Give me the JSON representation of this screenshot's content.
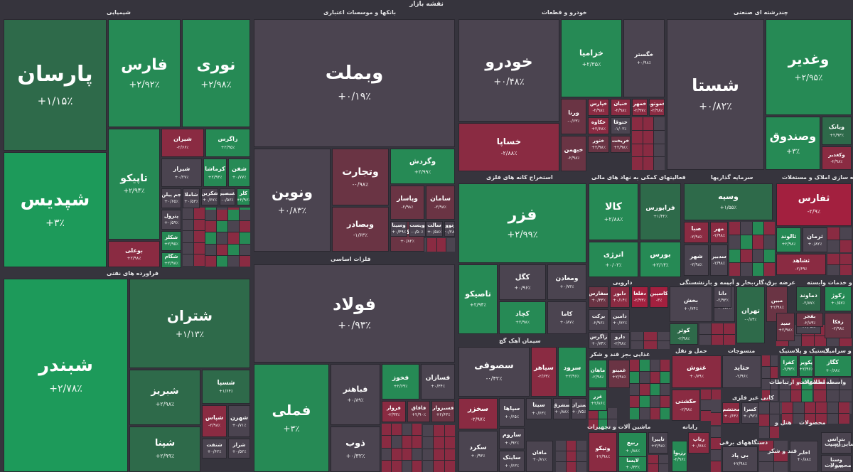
{
  "page_title": "نقشه بازار",
  "colors": {
    "g3": "#1d9a5a",
    "g2": "#268a55",
    "g1": "#2e6a4a",
    "n": "#4b4450",
    "r1": "#6a3444",
    "r2": "#8a2b42",
    "r3": "#a3203f"
  },
  "sectors": [
    {
      "label": "شیمیایی"
    },
    {
      "label": "بانکها و موسسات اعتباری"
    },
    {
      "label": "خودرو و قطعات"
    },
    {
      "label": "چندرشته ای صنعتی"
    },
    {
      "label": "فراورده های نفتی"
    },
    {
      "label": "فلزات اساسی"
    },
    {
      "label": "استخراج کانه های فلزی"
    },
    {
      "label": "فعالیتهای کمکی به نهاد های مالی"
    },
    {
      "label": "سرمایه گذاریها"
    },
    {
      "label": "انبوه سازی املاک و مستغلات"
    },
    {
      "label": "سیمان آهک گچ"
    },
    {
      "label": "دارویی"
    },
    {
      "label": "بیمه و بازنشستگی"
    },
    {
      "label": "زراعت و خدمات وابسته"
    },
    {
      "label": "عرضه برق،گاز،بخار و آب"
    },
    {
      "label": "غذایی بجز قند و شکر"
    },
    {
      "label": "حمل و نقل"
    },
    {
      "label": "منسوجات"
    },
    {
      "label": "لاستیک و پلاستیک"
    },
    {
      "label": "کاشی و سرامیک"
    },
    {
      "label": "ماشین آلات و تجهیزات"
    },
    {
      "label": "رایانه"
    },
    {
      "label": "اطلاعات و ارتباطات"
    },
    {
      "label": "محصولات"
    },
    {
      "label": "واسطه"
    },
    {
      "label": "کانی غیر فلزی"
    },
    {
      "label": "دستگاههای برقی"
    },
    {
      "label": "قند و شکر"
    },
    {
      "label": "ساير اسيت"
    },
    {
      "label": "محصولات"
    },
    {
      "label": "هتل و"
    },
    {
      "label": "محصولات"
    }
  ],
  "tiles": [
    {
      "name": "پارسان",
      "pct": "+۱/۱۵٪"
    },
    {
      "name": "فارس",
      "pct": "+۲/۹۲٪"
    },
    {
      "name": "نوری",
      "pct": "+۲/۹۸٪"
    },
    {
      "name": "شپدیس",
      "pct": "+۳٪"
    },
    {
      "name": "تاپیکو",
      "pct": "+۲/۹۴٪"
    },
    {
      "name": "شیران",
      "pct": "-۲/۶۶٪"
    },
    {
      "name": "زاگرس",
      "pct": "+۲/۹۵٪"
    },
    {
      "name": "شیراز",
      "pct": "+۰/۲۷٪"
    },
    {
      "name": "کرماشا",
      "pct": "+۲/۹۳٪"
    },
    {
      "name": "شفن",
      "pct": "+۰/۷۷٪"
    },
    {
      "name": "جم پیلن",
      "pct": "+۰/۶۵٪"
    },
    {
      "name": "شاملا",
      "pct": "+۰/۵۳٪"
    },
    {
      "name": "شکربن",
      "pct": "+۰/۶۷٪"
    },
    {
      "name": "شبصیر",
      "pct": "-۰/۵۶٪"
    },
    {
      "name": "کلر",
      "pct": "+۲/۹۶٪"
    },
    {
      "name": "پترول",
      "pct": "+۰/۵۹٪"
    },
    {
      "name": "شکلر",
      "pct": "+۲/۹۵٪"
    },
    {
      "name": "بوعلی",
      "pct": "+۲/۹۸٪"
    },
    {
      "name": "شگام",
      "pct": "+۲/۹۸٪"
    },
    {
      "name": "وبملت",
      "pct": "+۰/۱۹٪"
    },
    {
      "name": "ونوین",
      "pct": "+۰/۸۳٪"
    },
    {
      "name": "وتجارت",
      "pct": "-۰/۹۸٪"
    },
    {
      "name": "وگردش",
      "pct": "+۲/۹۹٪"
    },
    {
      "name": "وبصادر",
      "pct": "-۱/۶۳٪"
    },
    {
      "name": "وپاسار",
      "pct": "-۲/۹۸٪"
    },
    {
      "name": "وکار",
      "pct": "+۰/۸۲٪"
    },
    {
      "name": "سامان",
      "pct": "-۲/۹۸٪"
    },
    {
      "name": "وسینا",
      "pct": "+۰/۴۹٪"
    },
    {
      "name": "ویست",
      "pct": "-۰/۵۰٪"
    },
    {
      "name": "سالت",
      "pct": "+۰/۵۸٪"
    },
    {
      "name": "ونوور",
      "pct": "+۰/۲۸٪"
    },
    {
      "name": "خودرو",
      "pct": "+۰/۴۸٪"
    },
    {
      "name": "خزامیا",
      "pct": "+۲/۳۵٪"
    },
    {
      "name": "خگستر",
      "pct": "+۰/۹۸٪"
    },
    {
      "name": "خساپا",
      "pct": "-۲/۸۸٪"
    },
    {
      "name": "ورنا",
      "pct": "-۰/۶۳٪"
    },
    {
      "name": "خپارس",
      "pct": "-۲/۹۸٪"
    },
    {
      "name": "خنیان",
      "pct": "-۲/۹۸٪"
    },
    {
      "name": "خمهر",
      "pct": "-۲/۹۷٪"
    },
    {
      "name": "خموتور",
      "pct": "-۲/۹۸٪"
    },
    {
      "name": "خکاوه",
      "pct": "+۲/۶۸٪"
    },
    {
      "name": "ختوقا",
      "pct": "-۱/۰۲٪"
    },
    {
      "name": "خبهمن",
      "pct": "-۲/۹۸٪"
    },
    {
      "name": "ختور",
      "pct": "+۲/۹۸٪"
    },
    {
      "name": "خریخت",
      "pct": "+۲/۹۸٪"
    },
    {
      "name": "شستا",
      "pct": "+۰/۸۲٪"
    },
    {
      "name": "وغدیر",
      "pct": "+۲/۹۵٪"
    },
    {
      "name": "وصندوق",
      "pct": "+۳٪"
    },
    {
      "name": "وبانک",
      "pct": "+۲/۹۳٪"
    },
    {
      "name": "وکغدیر",
      "pct": "-۲/۹۸٪"
    },
    {
      "name": "شبندر",
      "pct": "+۲/۷۸٪"
    },
    {
      "name": "شتران",
      "pct": "+۱/۱۳٪"
    },
    {
      "name": "شبریز",
      "pct": "+۲/۹۸٪"
    },
    {
      "name": "شسپا",
      "pct": "+۱/۶۴٪"
    },
    {
      "name": "شپنا",
      "pct": "+۲/۹۹٪"
    },
    {
      "name": "شپاس",
      "pct": "-۲/۹۸٪"
    },
    {
      "name": "شهرن",
      "pct": "+۰/۷۱٪"
    },
    {
      "name": "شنفت",
      "pct": "+۰/۶۲٪"
    },
    {
      "name": "شراز",
      "pct": "+۰/۵۲٪"
    },
    {
      "name": "فولاد",
      "pct": "+۰/۹۳٪"
    },
    {
      "name": "فملی",
      "pct": "+۳٪"
    },
    {
      "name": "فباهنر",
      "pct": "+۰/۸۹٪"
    },
    {
      "name": "فخوز",
      "pct": "+۲/۶۹٪"
    },
    {
      "name": "فسازان",
      "pct": "+۰/۳۴٪"
    },
    {
      "name": "ذوب",
      "pct": "+۰/۳۲٪"
    },
    {
      "name": "فروار",
      "pct": "-۲/۹۳٪"
    },
    {
      "name": "فاقاق",
      "pct": "+۲/۹۰٪"
    },
    {
      "name": "فسبزوار",
      "pct": "+۲/۶۳٪"
    },
    {
      "name": "فزر",
      "pct": "+۲/۹۹٪"
    },
    {
      "name": "تاصیکو",
      "pct": "+۲/۹۴٪"
    },
    {
      "name": "کگل",
      "pct": "+۰/۹۶٪"
    },
    {
      "name": "ومعادن",
      "pct": "+۰/۷۳٪"
    },
    {
      "name": "کچاد",
      "pct": "+۲/۹۸٪"
    },
    {
      "name": "کاما",
      "pct": "+۰/۸۷٪"
    },
    {
      "name": "کالا",
      "pct": "+۲/۸۸٪"
    },
    {
      "name": "فرابورس",
      "pct": "+۱/۴۲٪"
    },
    {
      "name": "انرژی",
      "pct": "+۰/۰۲٪"
    },
    {
      "name": "بورس",
      "pct": "+۲/۱۴٪"
    },
    {
      "name": "وسپه",
      "pct": "+۱/۵۵٪"
    },
    {
      "name": "وخارزم",
      "pct": "-۲/۹۳٪"
    },
    {
      "name": "ثفارس",
      "pct": "-۲/۹٪"
    },
    {
      "name": "ثالوند",
      "pct": "+۲/۹۸٪"
    },
    {
      "name": "ثرمان",
      "pct": "+۰/۸۲٪"
    },
    {
      "name": "ثشاهد",
      "pct": "-۲/۶۹٪"
    },
    {
      "name": "صبا",
      "pct": "-۲/۹۸٪"
    },
    {
      "name": "مهر",
      "pct": "-۲/۹۸٪"
    },
    {
      "name": "شهر",
      "pct": "-۲/۹۸٪"
    },
    {
      "name": "سدبیر",
      "pct": "-۲/۹۸٪"
    },
    {
      "name": "سصوفی",
      "pct": "-۰/۴۲٪"
    },
    {
      "name": "سیاهر",
      "pct": "-۲/۶۳٪"
    },
    {
      "name": "سرود",
      "pct": "+۲/۹۶٪"
    },
    {
      "name": "سخزر",
      "pct": "-۲/۹۷٪"
    },
    {
      "name": "سپاها",
      "pct": "+۰/۶۵٪"
    },
    {
      "name": "سیتا",
      "pct": "+۰/۶۳٪"
    },
    {
      "name": "سشرق",
      "pct": "+۰/۸۸٪"
    },
    {
      "name": "ستران",
      "pct": "+۰/۷۵٪"
    },
    {
      "name": "سکرد",
      "pct": "+۰/۹۳٪"
    },
    {
      "name": "ساروم",
      "pct": "+۰/۹۲٪"
    },
    {
      "name": "سایتک",
      "pct": "+۰/۶۳٪"
    },
    {
      "name": "سفارس",
      "pct": "+۰/۳۳٪"
    },
    {
      "name": "دابور",
      "pct": "+۰/۱۴٪"
    },
    {
      "name": "دفلغا",
      "pct": "-۲/۹۳٪"
    },
    {
      "name": "کاسپین",
      "pct": "-۳٪"
    },
    {
      "name": "برکت",
      "pct": "-۲/۹۶٪"
    },
    {
      "name": "دامین",
      "pct": "+۰/۷۲٪"
    },
    {
      "name": "زاگرس",
      "pct": "+۰/۷۴٪"
    },
    {
      "name": "دارو",
      "pct": "-۲/۹۸٪"
    },
    {
      "name": "بخش",
      "pct": "+۰/۷۴٪"
    },
    {
      "name": "بپاس",
      "pct": "+۰/۵۳٪"
    },
    {
      "name": "کوثر",
      "pct": "-۲/۹۸٪"
    },
    {
      "name": "دانا",
      "pct": "-۲/۹۳٪"
    },
    {
      "name": "تهران",
      "pct": "-۰/۸۴٪"
    },
    {
      "name": "مبین",
      "pct": "+۲/۹۸٪"
    },
    {
      "name": "دماوند",
      "pct": "-۲/۸۷٪"
    },
    {
      "name": "زکوثر",
      "pct": "+۲/۹۸٪"
    },
    {
      "name": "زکوژ",
      "pct": "+۰/۵۷٪"
    },
    {
      "name": "سید",
      "pct": "+۲/۹۸٪"
    },
    {
      "name": "بفجر",
      "pct": "-۲/۸۹٪"
    },
    {
      "name": "زفکا",
      "pct": "-۲/۹۸٪"
    },
    {
      "name": "ماهان",
      "pct": "-۲/۹۸٪"
    },
    {
      "name": "غزر",
      "pct": "+۲/۸۶٪"
    },
    {
      "name": "غمینو",
      "pct": "+۲/۹۸٪"
    },
    {
      "name": "غنوش",
      "pct": "+۰/۷۹٪"
    },
    {
      "name": "حکشتی",
      "pct": "-۲/۹۸٪"
    },
    {
      "name": "حتاید",
      "pct": "-۲/۹۶٪"
    },
    {
      "name": "محتشم",
      "pct": "+۰/۶۳٪"
    },
    {
      "name": "کسرا",
      "pct": "+۰/۹۲٪"
    },
    {
      "name": "کگاز",
      "pct": "+۰/۶۸٪"
    },
    {
      "name": "کحافظ",
      "pct": "+۲/۹۸٪"
    },
    {
      "name": "کفرا",
      "pct": "-۲/۹۳٪"
    },
    {
      "name": "پکویر",
      "pct": "+۲/۹۶٪"
    },
    {
      "name": "ربیع",
      "pct": "+۰/۸۸٪"
    },
    {
      "name": "تاپیرا",
      "pct": "+۲/۹۸٪"
    },
    {
      "name": "لابسا",
      "pct": "+۰/۳۳٪"
    },
    {
      "name": "وتیکو",
      "pct": "+۲/۹۸٪"
    },
    {
      "name": "لرزما",
      "pct": "-۲/۹۸٪"
    },
    {
      "name": "ختراک",
      "pct": "-۲/۹۸٪"
    },
    {
      "name": "ماقان",
      "pct": "+۰/۸۱٪"
    },
    {
      "name": "رتاپ",
      "pct": "+۰/۷۸٪"
    },
    {
      "name": "رزیوا",
      "pct": "-۲/۹۶٪"
    },
    {
      "name": "بی پاد",
      "pct": "+۲/۹۸٪"
    },
    {
      "name": "بترانس",
      "pct": "+۰/۵۶٪"
    },
    {
      "name": "وسنا",
      "pct": "+۰/۸۹٪"
    },
    {
      "name": "اخابر",
      "pct": "+۰/۸۸٪"
    },
    {
      "name": "قثابت",
      "pct": "+۰/۹۶٪"
    },
    {
      "name": "سیمین",
      "pct": "+۰/۶۳٪"
    }
  ]
}
